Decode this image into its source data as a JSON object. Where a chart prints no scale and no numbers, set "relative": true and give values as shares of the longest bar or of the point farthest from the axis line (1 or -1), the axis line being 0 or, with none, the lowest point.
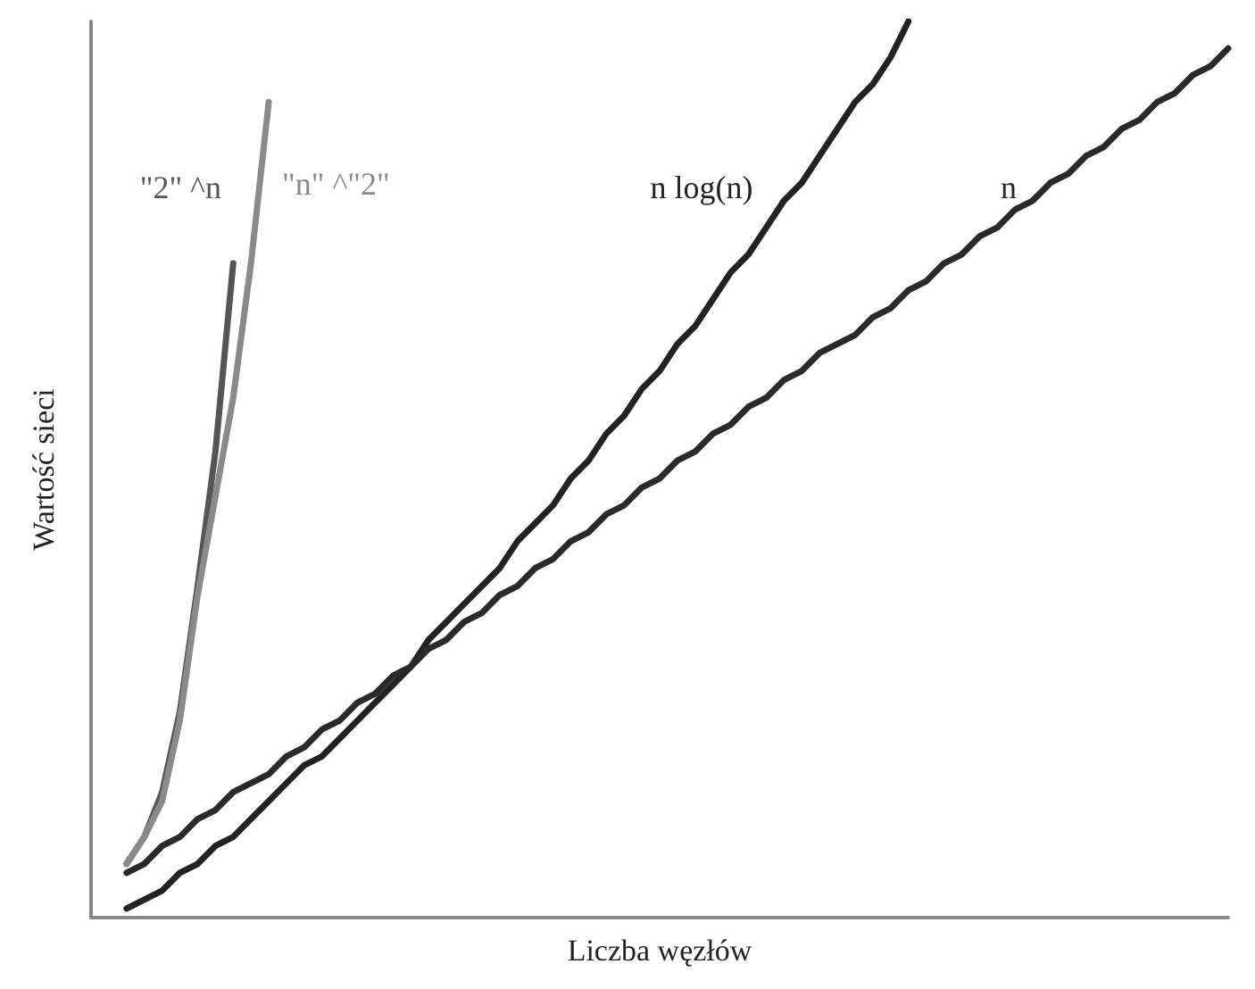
{
  "chart_data": {
    "type": "line",
    "relative": true,
    "xlabel": "Liczba węzłów",
    "ylabel": "Wartość sieci",
    "legend": false,
    "grid": false,
    "marker": "none",
    "line_style": "solid",
    "tick_labels": false,
    "categories": [
      null,
      null,
      null,
      null,
      null,
      null,
      null,
      null,
      null,
      null,
      null,
      null,
      null,
      null,
      null,
      null,
      null,
      null,
      null,
      null,
      null,
      null,
      null,
      null,
      null,
      null,
      null,
      null,
      null,
      null,
      null,
      null,
      null,
      null,
      null,
      null,
      null,
      null,
      null,
      null,
      null,
      null,
      null,
      null,
      null,
      null,
      null,
      null,
      null,
      null,
      null,
      null,
      null,
      null,
      null,
      null,
      null,
      null,
      null,
      null,
      null,
      null,
      null,
      null,
      null
    ],
    "series": [
      {
        "name": "\"2\" ^n",
        "color": "#555555",
        "values": [
          null,
          null,
          0.06,
          0.09,
          0.14,
          0.23,
          0.37,
          0.52,
          0.73,
          null,
          null,
          null,
          null,
          null,
          null,
          null,
          null,
          null,
          null,
          null,
          null,
          null,
          null,
          null,
          null,
          null,
          null,
          null,
          null,
          null,
          null,
          null,
          null,
          null,
          null,
          null,
          null,
          null,
          null,
          null,
          null,
          null,
          null,
          null,
          null,
          null,
          null,
          null,
          null,
          null,
          null,
          null,
          null,
          null,
          null,
          null,
          null,
          null,
          null,
          null,
          null,
          null,
          null,
          null,
          null
        ]
      },
      {
        "name": "\"n\" ^\"2\"",
        "color": "#8a8a8a",
        "values": [
          null,
          null,
          0.06,
          0.09,
          0.13,
          0.22,
          0.36,
          0.47,
          0.58,
          0.73,
          0.91,
          null,
          null,
          null,
          null,
          null,
          null,
          null,
          null,
          null,
          null,
          null,
          null,
          null,
          null,
          null,
          null,
          null,
          null,
          null,
          null,
          null,
          null,
          null,
          null,
          null,
          null,
          null,
          null,
          null,
          null,
          null,
          null,
          null,
          null,
          null,
          null,
          null,
          null,
          null,
          null,
          null,
          null,
          null,
          null,
          null,
          null,
          null,
          null,
          null,
          null,
          null,
          null,
          null,
          null
        ]
      },
      {
        "name": "n log(n)",
        "color": "#222222",
        "values": [
          null,
          null,
          0.01,
          0.02,
          0.03,
          0.05,
          0.06,
          0.08,
          0.09,
          0.11,
          0.13,
          0.15,
          0.17,
          0.18,
          0.2,
          0.22,
          0.24,
          0.26,
          0.28,
          0.31,
          0.33,
          0.35,
          0.37,
          0.39,
          0.42,
          0.44,
          0.46,
          0.49,
          0.51,
          0.54,
          0.56,
          0.59,
          0.61,
          0.64,
          0.66,
          0.69,
          0.72,
          0.74,
          0.77,
          0.8,
          0.82,
          0.85,
          0.88,
          0.91,
          0.93,
          0.96,
          1.0,
          null,
          null,
          null,
          null,
          null,
          null,
          null,
          null,
          null,
          null,
          null,
          null,
          null,
          null,
          null,
          null,
          null,
          null
        ]
      },
      {
        "name": "n",
        "color": "#2a2a2a",
        "values": [
          null,
          null,
          0.05,
          0.06,
          0.08,
          0.09,
          0.11,
          0.12,
          0.14,
          0.15,
          0.16,
          0.18,
          0.19,
          0.21,
          0.22,
          0.24,
          0.25,
          0.27,
          0.28,
          0.3,
          0.31,
          0.33,
          0.34,
          0.36,
          0.37,
          0.39,
          0.4,
          0.42,
          0.43,
          0.45,
          0.46,
          0.48,
          0.49,
          0.51,
          0.52,
          0.54,
          0.55,
          0.57,
          0.58,
          0.6,
          0.61,
          0.63,
          0.64,
          0.65,
          0.67,
          0.68,
          0.7,
          0.71,
          0.73,
          0.74,
          0.76,
          0.77,
          0.79,
          0.8,
          0.82,
          0.83,
          0.85,
          0.86,
          0.88,
          0.89,
          0.91,
          0.92,
          0.94,
          0.95,
          0.97
        ]
      }
    ]
  }
}
